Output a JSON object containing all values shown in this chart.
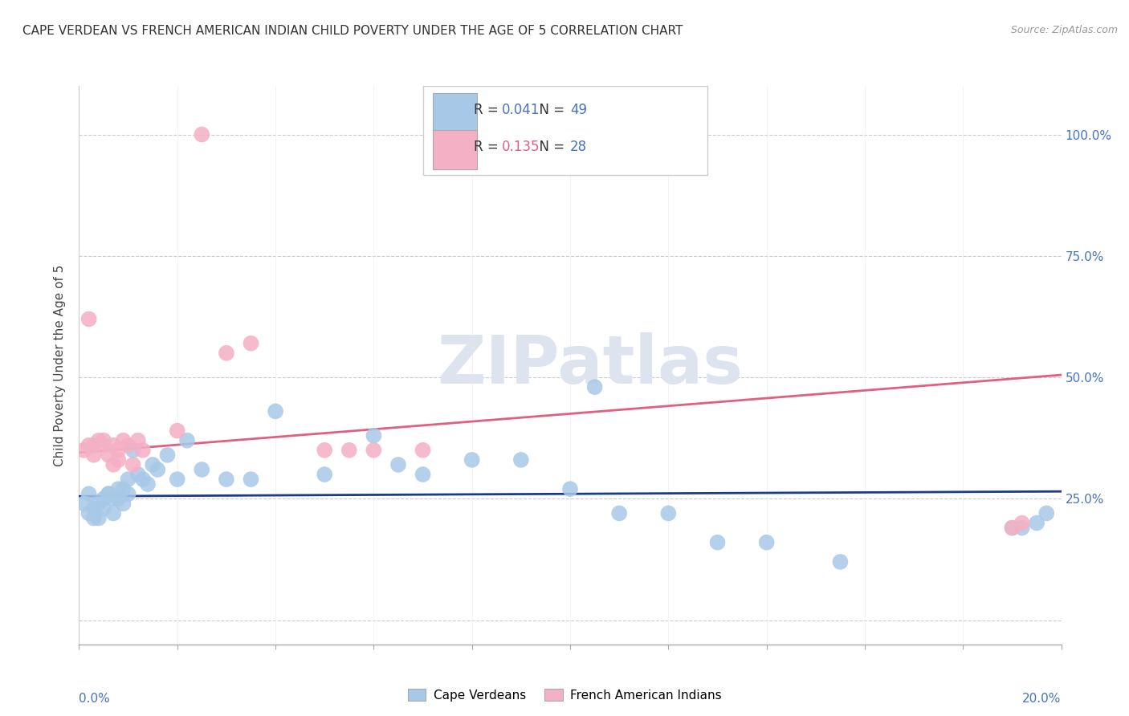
{
  "title": "CAPE VERDEAN VS FRENCH AMERICAN INDIAN CHILD POVERTY UNDER THE AGE OF 5 CORRELATION CHART",
  "source": "Source: ZipAtlas.com",
  "ylabel": "Child Poverty Under the Age of 5",
  "y_ticks": [
    0.0,
    0.25,
    0.5,
    0.75,
    1.0
  ],
  "y_tick_labels": [
    "",
    "25.0%",
    "50.0%",
    "75.0%",
    "100.0%"
  ],
  "xmin": 0.0,
  "xmax": 0.2,
  "ymin": -0.05,
  "ymax": 1.1,
  "R_blue": "0.041",
  "N_blue": "49",
  "R_pink": "0.135",
  "N_pink": "28",
  "legend_label1": "Cape Verdeans",
  "legend_label2": "French American Indians",
  "blue_scatter": "#a8c8e8",
  "pink_scatter": "#f4b0c4",
  "blue_line": "#1a3a8a",
  "pink_line": "#e06080",
  "watermark_text": "ZIPatlas",
  "watermark_color": "#dde4f0",
  "title_color": "#333333",
  "source_color": "#999999",
  "right_axis_color": "#4472c4",
  "bottom_axis_color": "#4472c4",
  "cv_x": [
    0.001,
    0.002,
    0.002,
    0.003,
    0.003,
    0.004,
    0.004,
    0.005,
    0.005,
    0.006,
    0.006,
    0.007,
    0.007,
    0.008,
    0.008,
    0.009,
    0.009,
    0.01,
    0.01,
    0.011,
    0.012,
    0.013,
    0.014,
    0.015,
    0.016,
    0.018,
    0.02,
    0.022,
    0.025,
    0.03,
    0.035,
    0.04,
    0.05,
    0.06,
    0.065,
    0.07,
    0.08,
    0.09,
    0.1,
    0.11,
    0.12,
    0.13,
    0.14,
    0.155,
    0.19,
    0.192,
    0.195,
    0.197,
    0.105
  ],
  "cv_y": [
    0.24,
    0.22,
    0.26,
    0.23,
    0.21,
    0.24,
    0.21,
    0.25,
    0.23,
    0.26,
    0.26,
    0.25,
    0.22,
    0.27,
    0.25,
    0.27,
    0.24,
    0.29,
    0.26,
    0.35,
    0.3,
    0.29,
    0.28,
    0.32,
    0.31,
    0.34,
    0.29,
    0.37,
    0.31,
    0.29,
    0.29,
    0.43,
    0.3,
    0.38,
    0.32,
    0.3,
    0.33,
    0.33,
    0.27,
    0.22,
    0.22,
    0.16,
    0.16,
    0.12,
    0.19,
    0.19,
    0.2,
    0.22,
    0.48
  ],
  "fai_x": [
    0.001,
    0.002,
    0.002,
    0.003,
    0.003,
    0.004,
    0.005,
    0.005,
    0.006,
    0.007,
    0.007,
    0.008,
    0.008,
    0.009,
    0.01,
    0.011,
    0.012,
    0.013,
    0.02,
    0.025,
    0.03,
    0.035,
    0.05,
    0.055,
    0.06,
    0.07,
    0.19,
    0.192
  ],
  "fai_y": [
    0.35,
    0.36,
    0.62,
    0.36,
    0.34,
    0.37,
    0.36,
    0.37,
    0.34,
    0.36,
    0.32,
    0.35,
    0.33,
    0.37,
    0.36,
    0.32,
    0.37,
    0.35,
    0.39,
    1.0,
    0.55,
    0.57,
    0.35,
    0.35,
    0.35,
    0.35,
    0.19,
    0.2
  ],
  "trendline_blue_x0": 0.0,
  "trendline_blue_x1": 0.2,
  "trendline_blue_y0": 0.255,
  "trendline_blue_y1": 0.265,
  "trendline_pink_x0": 0.0,
  "trendline_pink_x1": 0.2,
  "trendline_pink_y0": 0.345,
  "trendline_pink_y1": 0.505
}
